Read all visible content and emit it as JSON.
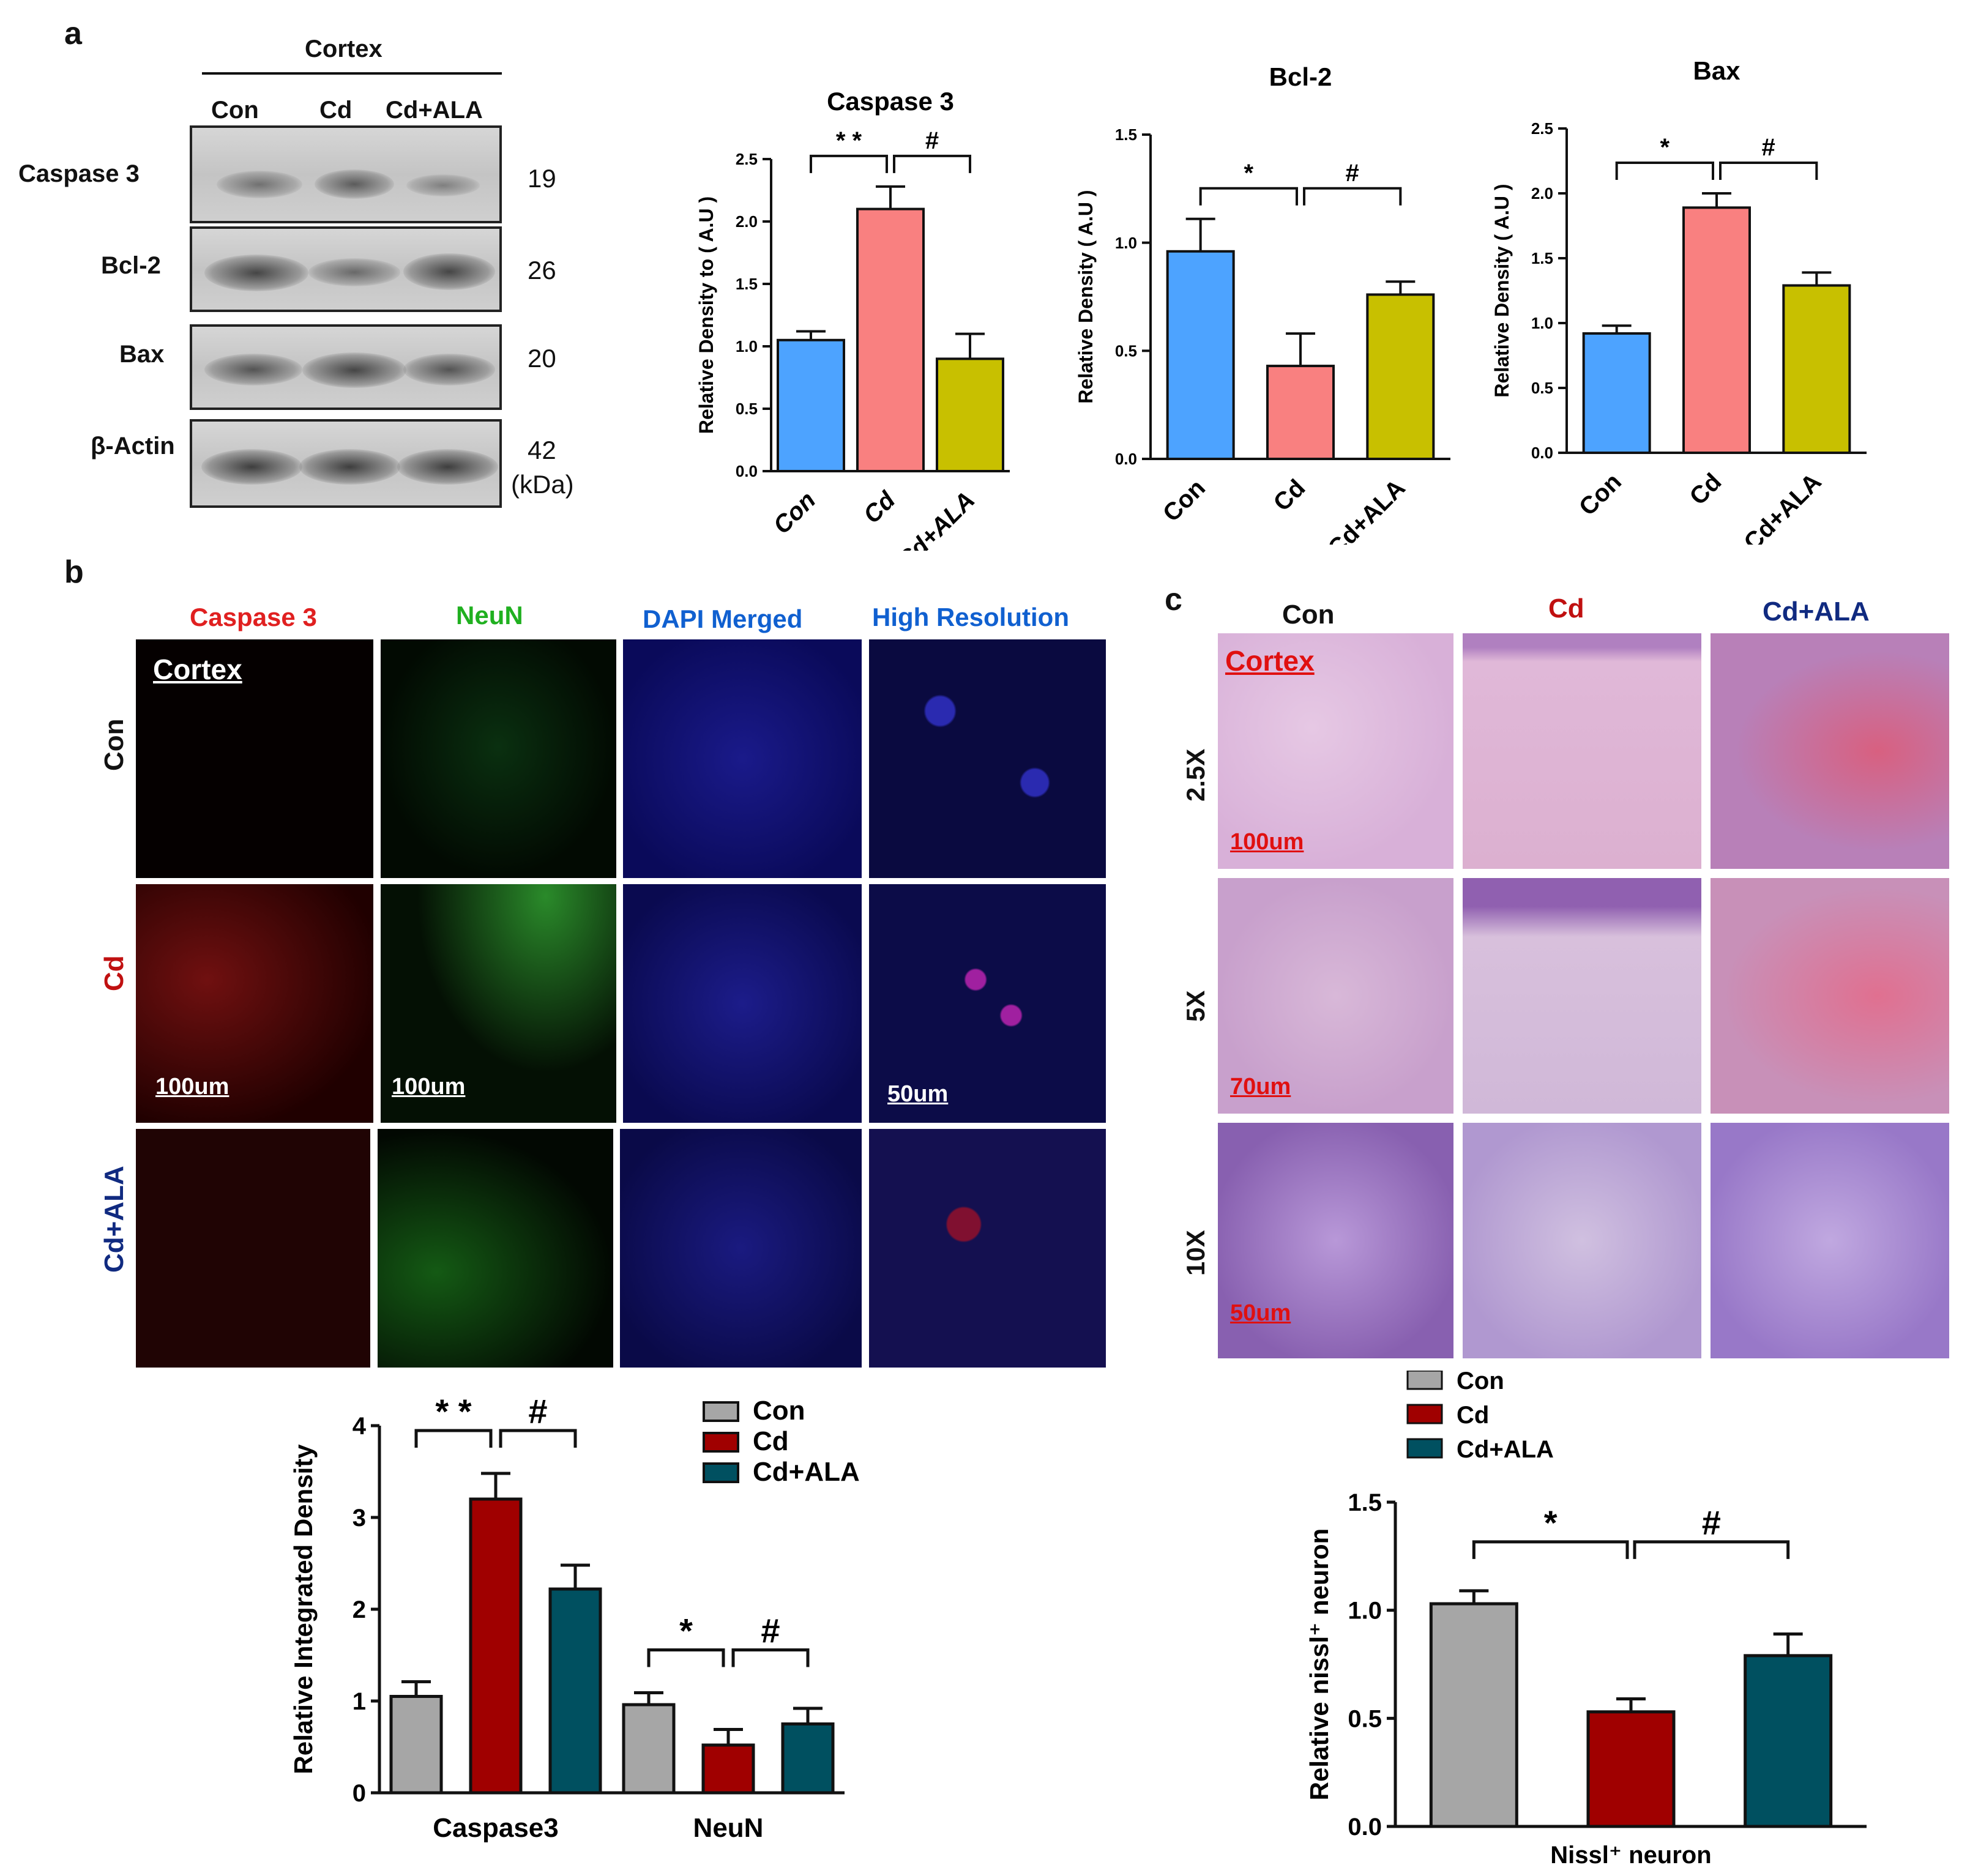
{
  "panels": {
    "a": "a",
    "b": "b",
    "c": "c"
  },
  "western_blot": {
    "region": "Cortex",
    "lanes": [
      "Con",
      "Cd",
      "Cd+ALA"
    ],
    "rows": [
      {
        "name": "Caspase 3",
        "kda": "19"
      },
      {
        "name": "Bcl-2",
        "kda": "26"
      },
      {
        "name": "Bax",
        "kda": "20"
      },
      {
        "name": "β-Actin",
        "kda": "42"
      }
    ],
    "kda_unit": "(kDa)"
  },
  "colors": {
    "con_a": "#4da3ff",
    "cd_a": "#f98080",
    "ala_a": "#c8c000",
    "con_b": "#a6a6a6",
    "cd_b": "#a00000",
    "ala_b": "#005060"
  },
  "chart_data": [
    {
      "type": "bar",
      "title": "Caspase 3",
      "ylabel": "Relative Density to ( A.U )",
      "categories": [
        "Con",
        "Cd",
        "Cd+ALA"
      ],
      "values": [
        1.05,
        2.1,
        0.9
      ],
      "errors": [
        0.07,
        0.18,
        0.2
      ],
      "ylim": [
        0,
        2.5
      ],
      "yticks": [
        "0.0",
        "0.5",
        "1.0",
        "1.5",
        "2.0",
        "2.5"
      ],
      "sig_left": "* *",
      "sig_right": "#"
    },
    {
      "type": "bar",
      "title": "Bcl-2",
      "ylabel": "Relative Density ( A.U )",
      "categories": [
        "Con",
        "Cd",
        "Cd+ALA"
      ],
      "values": [
        0.96,
        0.43,
        0.76
      ],
      "errors": [
        0.15,
        0.15,
        0.06
      ],
      "ylim": [
        0,
        1.5
      ],
      "yticks": [
        "0.0",
        "0.5",
        "1.0",
        "1.5"
      ],
      "sig_left": "*",
      "sig_right": "#"
    },
    {
      "type": "bar",
      "title": "Bax",
      "ylabel": "Relative Density ( A.U )",
      "categories": [
        "Con",
        "Cd",
        "Cd+ALA"
      ],
      "values": [
        0.92,
        1.89,
        1.29
      ],
      "errors": [
        0.06,
        0.11,
        0.1
      ],
      "ylim": [
        0,
        2.5
      ],
      "yticks": [
        "0.0",
        "0.5",
        "1.0",
        "1.5",
        "2.0",
        "2.5"
      ],
      "sig_left": "*",
      "sig_right": "#"
    },
    {
      "type": "bar",
      "title": "",
      "ylabel": "Relative Integrated Density",
      "categories": [
        "Caspase3",
        "NeuN"
      ],
      "series": [
        {
          "name": "Con",
          "values": [
            1.05,
            0.96
          ],
          "errors": [
            0.16,
            0.13
          ]
        },
        {
          "name": "Cd",
          "values": [
            3.2,
            0.52
          ],
          "errors": [
            0.28,
            0.17
          ]
        },
        {
          "name": "Cd+ALA",
          "values": [
            2.22,
            0.75
          ],
          "errors": [
            0.26,
            0.17
          ]
        }
      ],
      "ylim": [
        0,
        4
      ],
      "yticks": [
        "0",
        "1",
        "2",
        "3",
        "4"
      ],
      "sig": [
        [
          "* *",
          "#"
        ],
        [
          "*",
          "#"
        ]
      ]
    },
    {
      "type": "bar",
      "title": "",
      "ylabel": "Relative nissl⁺ neuron",
      "xlabel": "Nissl⁺ neuron",
      "categories": [
        "Con",
        "Cd",
        "Cd+ALA"
      ],
      "values": [
        1.03,
        0.53,
        0.79
      ],
      "errors": [
        0.06,
        0.06,
        0.1
      ],
      "ylim": [
        0,
        1.5
      ],
      "yticks": [
        "0.0",
        "0.5",
        "1.0",
        "1.5"
      ],
      "sig_left": "*",
      "sig_right": "#",
      "legend": [
        "Con",
        "Cd",
        "Cd+ALA"
      ]
    }
  ],
  "immuno": {
    "columns": [
      "Caspase 3",
      "NeuN",
      "DAPI Merged",
      "High Resolution"
    ],
    "rows": [
      "Con",
      "Cd",
      "Cd+ALA"
    ],
    "region": "Cortex",
    "scales": [
      "100um",
      "100um",
      "50um"
    ]
  },
  "nissl": {
    "columns": [
      "Con",
      "Cd",
      "Cd+ALA"
    ],
    "rows": [
      "2.5X",
      "5X",
      "10X"
    ],
    "region": "Cortex",
    "scales": [
      "100um",
      "70um",
      "50um"
    ]
  }
}
